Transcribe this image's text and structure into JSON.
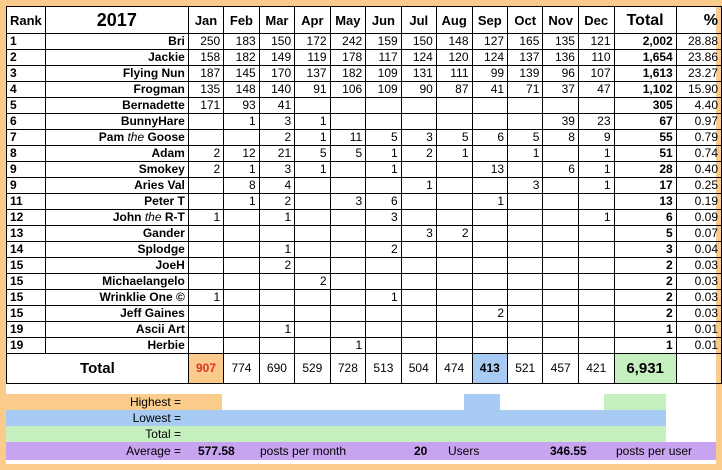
{
  "header": {
    "rank": "Rank",
    "year": "2017",
    "months": [
      "Jan",
      "Feb",
      "Mar",
      "Apr",
      "May",
      "Jun",
      "Jul",
      "Aug",
      "Sep",
      "Oct",
      "Nov",
      "Dec"
    ],
    "total": "Total",
    "pct": "%"
  },
  "rows": [
    {
      "rank": "1",
      "name": "Bri",
      "m": [
        "250",
        "183",
        "150",
        "172",
        "242",
        "159",
        "150",
        "148",
        "127",
        "165",
        "135",
        "121"
      ],
      "total": "2,002",
      "pct": "28.88"
    },
    {
      "rank": "2",
      "name": "Jackie",
      "m": [
        "158",
        "182",
        "149",
        "119",
        "178",
        "117",
        "124",
        "120",
        "124",
        "137",
        "136",
        "110"
      ],
      "total": "1,654",
      "pct": "23.86"
    },
    {
      "rank": "3",
      "name": "Flying Nun",
      "m": [
        "187",
        "145",
        "170",
        "137",
        "182",
        "109",
        "131",
        "111",
        "99",
        "139",
        "96",
        "107"
      ],
      "total": "1,613",
      "pct": "23.27"
    },
    {
      "rank": "4",
      "name": "Frogman",
      "m": [
        "135",
        "148",
        "140",
        "91",
        "106",
        "109",
        "90",
        "87",
        "41",
        "71",
        "37",
        "47"
      ],
      "total": "1,102",
      "pct": "15.90"
    },
    {
      "rank": "5",
      "name": "Bernadette",
      "m": [
        "171",
        "93",
        "41",
        "",
        "",
        "",
        "",
        "",
        "",
        "",
        "",
        ""
      ],
      "total": "305",
      "pct": "4.40"
    },
    {
      "rank": "6",
      "name": "BunnyHare",
      "m": [
        "",
        "1",
        "3",
        "1",
        "",
        "",
        "",
        "",
        "",
        "",
        "39",
        "23"
      ],
      "total": "67",
      "pct": "0.97"
    },
    {
      "rank": "7",
      "name": "Pam the Goose",
      "m": [
        "",
        "",
        "2",
        "1",
        "11",
        "5",
        "3",
        "5",
        "6",
        "5",
        "8",
        "9"
      ],
      "total": "55",
      "pct": "0.79"
    },
    {
      "rank": "8",
      "name": "Adam",
      "m": [
        "2",
        "12",
        "21",
        "5",
        "5",
        "1",
        "2",
        "1",
        "",
        "1",
        "",
        "1"
      ],
      "total": "51",
      "pct": "0.74"
    },
    {
      "rank": "9",
      "name": "Smokey",
      "m": [
        "2",
        "1",
        "3",
        "1",
        "",
        "1",
        "",
        "",
        "13",
        "",
        "6",
        "1"
      ],
      "total": "28",
      "pct": "0.40"
    },
    {
      "rank": "9",
      "name": "Aries Val",
      "m": [
        "",
        "8",
        "4",
        "",
        "",
        "",
        "1",
        "",
        "",
        "3",
        "",
        "1"
      ],
      "total": "17",
      "pct": "0.25"
    },
    {
      "rank": "11",
      "name": "Peter T",
      "m": [
        "",
        "1",
        "2",
        "",
        "3",
        "6",
        "",
        "",
        "1",
        "",
        "",
        ""
      ],
      "total": "13",
      "pct": "0.19"
    },
    {
      "rank": "12",
      "name": "John the R-T",
      "m": [
        "1",
        "",
        "1",
        "",
        "",
        "3",
        "",
        "",
        "",
        "",
        "",
        "1"
      ],
      "total": "6",
      "pct": "0.09"
    },
    {
      "rank": "13",
      "name": "Gander",
      "m": [
        "",
        "",
        "",
        "",
        "",
        "",
        "3",
        "2",
        "",
        "",
        "",
        ""
      ],
      "total": "5",
      "pct": "0.07"
    },
    {
      "rank": "14",
      "name": "Splodge",
      "m": [
        "",
        "",
        "1",
        "",
        "",
        "2",
        "",
        "",
        "",
        "",
        "",
        ""
      ],
      "total": "3",
      "pct": "0.04"
    },
    {
      "rank": "15",
      "name": "JoeH",
      "m": [
        "",
        "",
        "2",
        "",
        "",
        "",
        "",
        "",
        "",
        "",
        "",
        ""
      ],
      "total": "2",
      "pct": "0.03"
    },
    {
      "rank": "15",
      "name": "Michaelangelo",
      "m": [
        "",
        "",
        "",
        "2",
        "",
        "",
        "",
        "",
        "",
        "",
        "",
        ""
      ],
      "total": "2",
      "pct": "0.03"
    },
    {
      "rank": "15",
      "name": "Wrinklie One ©",
      "m": [
        "1",
        "",
        "",
        "",
        "",
        "1",
        "",
        "",
        "",
        "",
        "",
        ""
      ],
      "total": "2",
      "pct": "0.03"
    },
    {
      "rank": "15",
      "name": "Jeff Gaines",
      "m": [
        "",
        "",
        "",
        "",
        "",
        "",
        "",
        "",
        "2",
        "",
        "",
        ""
      ],
      "total": "2",
      "pct": "0.03"
    },
    {
      "rank": "19",
      "name": "Ascii Art",
      "m": [
        "",
        "",
        "1",
        "",
        "",
        "",
        "",
        "",
        "",
        "",
        "",
        ""
      ],
      "total": "1",
      "pct": "0.01"
    },
    {
      "rank": "19",
      "name": "Herbie",
      "m": [
        "",
        "",
        "",
        "",
        "1",
        "",
        "",
        "",
        "",
        "",
        "",
        ""
      ],
      "total": "1",
      "pct": "0.01"
    }
  ],
  "totals": {
    "label": "Total",
    "m": [
      "907",
      "774",
      "690",
      "529",
      "728",
      "513",
      "504",
      "474",
      "413",
      "521",
      "457",
      "421"
    ],
    "grand": "6,931",
    "highest_month_index": 0,
    "lowest_month_index": 8
  },
  "legend": {
    "highest": "Highest =",
    "lowest": "Lowest =",
    "total": "Total =",
    "average": "Average =",
    "avg_value": "577.58",
    "avg_unit": "posts per month",
    "users_value": "20",
    "users_label": "Users",
    "per_user_value": "346.55",
    "per_user_label": "posts per user"
  },
  "colors": {
    "border": "#fbcb8b",
    "highest": "#fbcb8b",
    "highest_text": "#e0302a",
    "lowest": "#a8cbf3",
    "total": "#c6efc0",
    "average": "#c8a4f0"
  }
}
